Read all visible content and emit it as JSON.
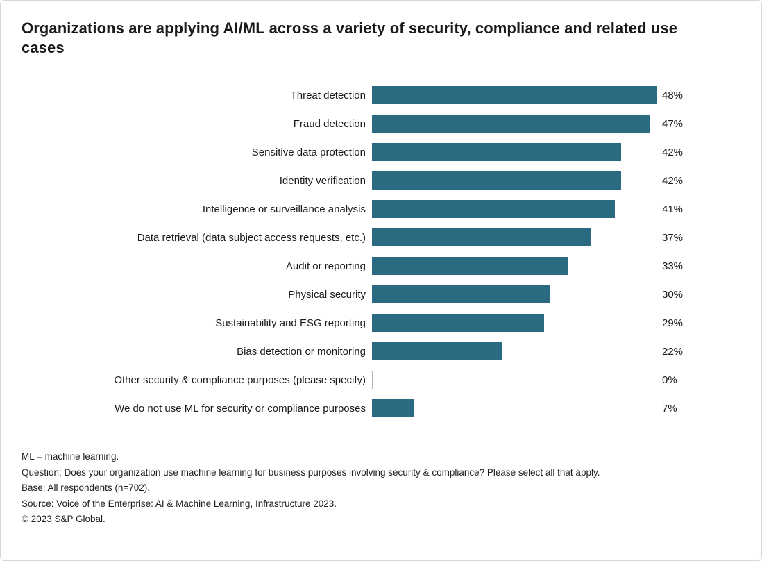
{
  "chart_data": {
    "type": "bar",
    "orientation": "horizontal",
    "title": "Organizations are applying AI/ML across a variety of security, compliance and related use cases",
    "categories": [
      "Threat detection",
      "Fraud detection",
      "Sensitive data protection",
      "Identity verification",
      "Intelligence or surveillance analysis",
      "Data retrieval (data subject access requests, etc.)",
      "Audit or reporting",
      "Physical security",
      "Sustainability and ESG reporting",
      "Bias detection or monitoring",
      "Other security & compliance purposes (please specify)",
      "We do not use ML for security or compliance purposes"
    ],
    "values": [
      48,
      47,
      42,
      42,
      41,
      37,
      33,
      30,
      29,
      22,
      0,
      7
    ],
    "value_suffix": "%",
    "xlim": [
      0,
      50
    ],
    "bar_color": "#2b6a80",
    "grid": false,
    "legend": false,
    "data_labels": true
  },
  "footnotes": [
    "ML = machine learning.",
    "Question: Does your organization use machine learning for business purposes involving security & compliance? Please select all that apply.",
    "Base: All respondents (n=702).",
    "Source: Voice of the Enterprise: AI & Machine Learning, Infrastructure 2023.",
    "© 2023 S&P Global."
  ]
}
